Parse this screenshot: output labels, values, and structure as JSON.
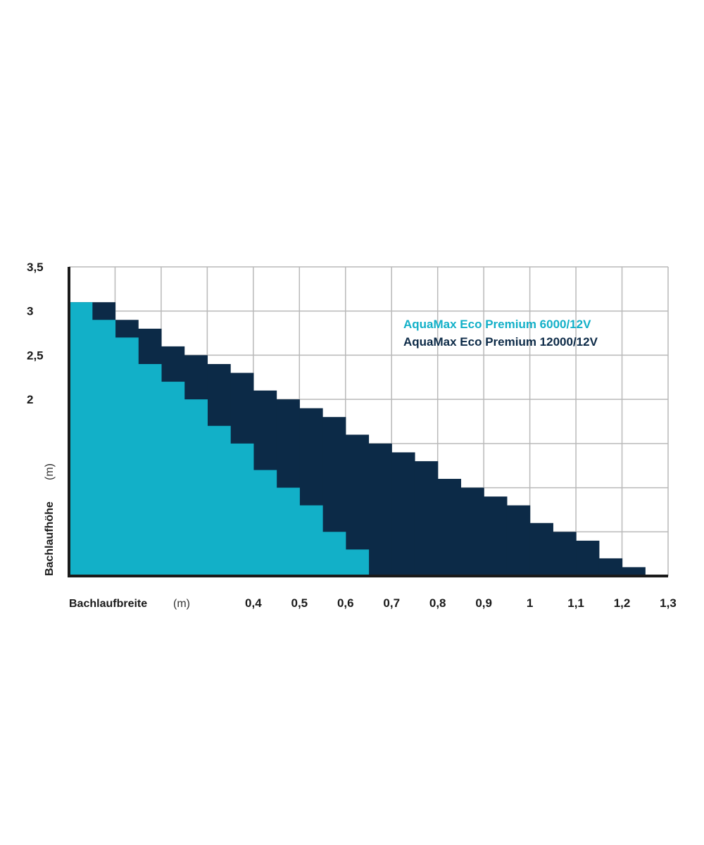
{
  "chart_data": {
    "type": "area",
    "xlabel": "Bachlaufbreite",
    "xunit": "(m)",
    "ylabel": "Bachlaufhöhe",
    "yunit": "(m)",
    "x_ticks": [
      {
        "value": 0.4,
        "label": "0,4"
      },
      {
        "value": 0.5,
        "label": "0,5"
      },
      {
        "value": 0.6,
        "label": "0,6"
      },
      {
        "value": 0.7,
        "label": "0,7"
      },
      {
        "value": 0.8,
        "label": "0,8"
      },
      {
        "value": 0.9,
        "label": "0,9"
      },
      {
        "value": 1.0,
        "label": "1"
      },
      {
        "value": 1.1,
        "label": "1,1"
      },
      {
        "value": 1.2,
        "label": "1,2"
      },
      {
        "value": 1.3,
        "label": "1,3"
      }
    ],
    "y_ticks": [
      {
        "value": 2.0,
        "label": "2"
      },
      {
        "value": 2.5,
        "label": "2,5"
      },
      {
        "value": 3.0,
        "label": "3"
      },
      {
        "value": 3.5,
        "label": "3,5"
      }
    ],
    "xlim": [
      0.0,
      1.3
    ],
    "ylim": [
      0.0,
      3.5
    ],
    "grid": true,
    "legend_position": "top-right",
    "series": [
      {
        "name": "AquaMax Eco Premium 12000/12V",
        "color": "#0c2a47",
        "steps": [
          {
            "x0": 0.0,
            "x1": 0.1,
            "y": 3.1
          },
          {
            "x0": 0.1,
            "x1": 0.15,
            "y": 2.9
          },
          {
            "x0": 0.15,
            "x1": 0.2,
            "y": 2.8
          },
          {
            "x0": 0.2,
            "x1": 0.25,
            "y": 2.6
          },
          {
            "x0": 0.25,
            "x1": 0.3,
            "y": 2.5
          },
          {
            "x0": 0.3,
            "x1": 0.35,
            "y": 2.4
          },
          {
            "x0": 0.35,
            "x1": 0.4,
            "y": 2.3
          },
          {
            "x0": 0.4,
            "x1": 0.45,
            "y": 2.1
          },
          {
            "x0": 0.45,
            "x1": 0.5,
            "y": 2.0
          },
          {
            "x0": 0.5,
            "x1": 0.55,
            "y": 1.9
          },
          {
            "x0": 0.55,
            "x1": 0.6,
            "y": 1.8
          },
          {
            "x0": 0.6,
            "x1": 0.65,
            "y": 1.6
          },
          {
            "x0": 0.65,
            "x1": 0.7,
            "y": 1.5
          },
          {
            "x0": 0.7,
            "x1": 0.75,
            "y": 1.4
          },
          {
            "x0": 0.75,
            "x1": 0.8,
            "y": 1.3
          },
          {
            "x0": 0.8,
            "x1": 0.85,
            "y": 1.1
          },
          {
            "x0": 0.85,
            "x1": 0.9,
            "y": 1.0
          },
          {
            "x0": 0.9,
            "x1": 0.95,
            "y": 0.9
          },
          {
            "x0": 0.95,
            "x1": 1.0,
            "y": 0.8
          },
          {
            "x0": 1.0,
            "x1": 1.05,
            "y": 0.6
          },
          {
            "x0": 1.05,
            "x1": 1.1,
            "y": 0.5
          },
          {
            "x0": 1.1,
            "x1": 1.15,
            "y": 0.4
          },
          {
            "x0": 1.15,
            "x1": 1.2,
            "y": 0.2
          },
          {
            "x0": 1.2,
            "x1": 1.25,
            "y": 0.1
          }
        ]
      },
      {
        "name": "AquaMax Eco Premium 6000/12V",
        "color": "#12b0c8",
        "steps": [
          {
            "x0": 0.0,
            "x1": 0.05,
            "y": 3.1
          },
          {
            "x0": 0.05,
            "x1": 0.1,
            "y": 2.9
          },
          {
            "x0": 0.1,
            "x1": 0.15,
            "y": 2.7
          },
          {
            "x0": 0.15,
            "x1": 0.2,
            "y": 2.4
          },
          {
            "x0": 0.2,
            "x1": 0.25,
            "y": 2.2
          },
          {
            "x0": 0.25,
            "x1": 0.3,
            "y": 2.0
          },
          {
            "x0": 0.3,
            "x1": 0.35,
            "y": 1.7
          },
          {
            "x0": 0.35,
            "x1": 0.4,
            "y": 1.5
          },
          {
            "x0": 0.4,
            "x1": 0.45,
            "y": 1.2
          },
          {
            "x0": 0.45,
            "x1": 0.5,
            "y": 1.0
          },
          {
            "x0": 0.5,
            "x1": 0.55,
            "y": 0.8
          },
          {
            "x0": 0.55,
            "x1": 0.6,
            "y": 0.5
          },
          {
            "x0": 0.6,
            "x1": 0.65,
            "y": 0.3
          }
        ]
      }
    ]
  }
}
